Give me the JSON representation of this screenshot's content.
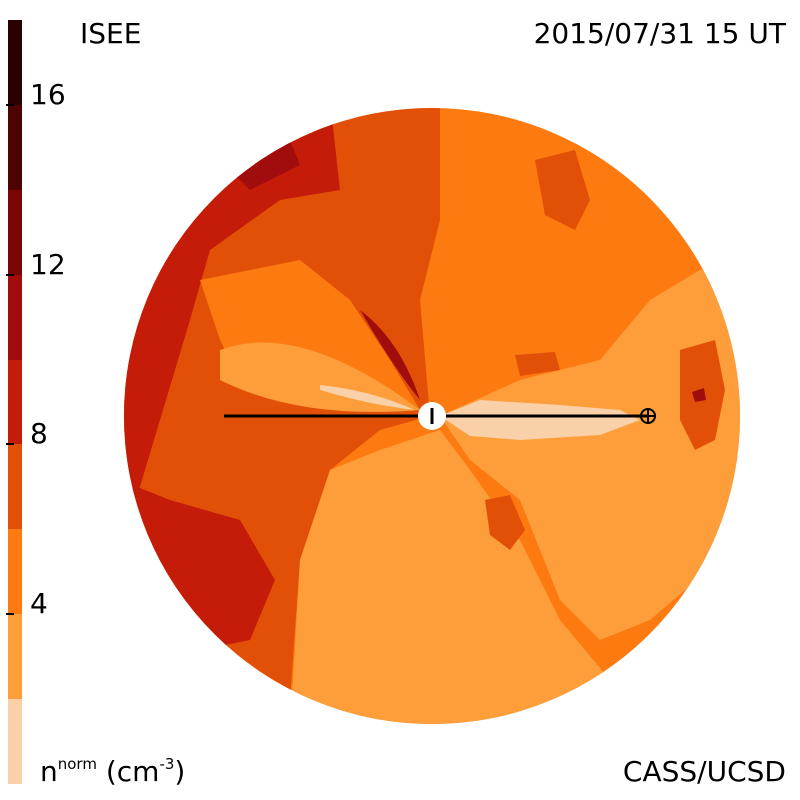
{
  "header": {
    "organization": "ISEE",
    "timestamp": "2015/07/31 15 UT"
  },
  "footer": {
    "credit": "CASS/UCSD",
    "unit_base": "n",
    "unit_sup": "norm",
    "unit_paren": "(cm",
    "unit_exp": "-3",
    "unit_close": ")"
  },
  "colorbar": {
    "min": 0,
    "max": 18,
    "ticks": [
      "4",
      "8",
      "12",
      "16"
    ],
    "bands": [
      {
        "from": 0,
        "to": 2,
        "color": "#f9d0a8"
      },
      {
        "from": 2,
        "to": 4,
        "color": "#fd9e3a"
      },
      {
        "from": 4,
        "to": 6,
        "color": "#fc7a10"
      },
      {
        "from": 6,
        "to": 8,
        "color": "#e25008"
      },
      {
        "from": 8,
        "to": 10,
        "color": "#c41c08"
      },
      {
        "from": 10,
        "to": 12,
        "color": "#a10d0d"
      },
      {
        "from": 12,
        "to": 14,
        "color": "#7a0505"
      },
      {
        "from": 14,
        "to": 16,
        "color": "#4e0303"
      },
      {
        "from": 16,
        "to": 18,
        "color": "#2a0000"
      }
    ]
  },
  "chart_data": {
    "type": "heatmap",
    "title": "ISEE",
    "subtitle": "2015/07/31 15 UT",
    "colorbar_label": "n norm (cm-3)",
    "colorbar_ticks": [
      4,
      8,
      12,
      16
    ],
    "colorbar_range": [
      0,
      18
    ]
  }
}
